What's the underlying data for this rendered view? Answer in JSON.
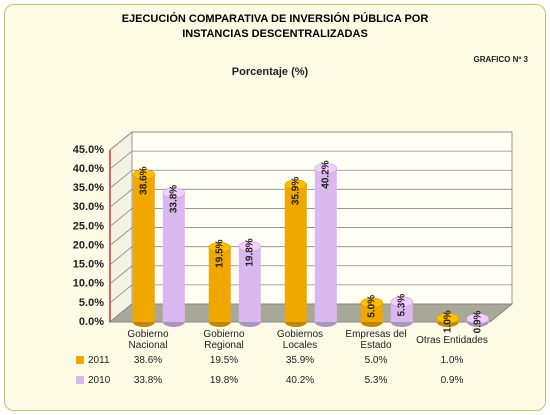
{
  "chart_data": {
    "type": "bar",
    "title": "EJECUCIÓN COMPARATIVA DE INVERSIÓN PÚBLICA POR INSTANCIAS DESCENTRALIZADAS",
    "subtitle": "Porcentaje  (%)",
    "annotation": "GRAFICO Nº 3",
    "categories": [
      "Gobierno Nacional",
      "Gobierno Regional",
      "Gobiernos Locales",
      "Empresas del Estado",
      "Otras Entidades"
    ],
    "series": [
      {
        "name": "2011",
        "color": "#f0a800",
        "values": [
          38.6,
          19.5,
          35.9,
          5.0,
          1.0
        ],
        "value_labels": [
          "38.6%",
          "19.5%",
          "35.9%",
          "5.0%",
          "1.0%"
        ]
      },
      {
        "name": "2010",
        "color": "#d9b8f0",
        "values": [
          33.8,
          19.8,
          40.2,
          5.3,
          0.9
        ],
        "value_labels": [
          "33.8%",
          "19.8%",
          "40.2%",
          "5.3%",
          "0.9%"
        ]
      }
    ],
    "ylim": [
      0,
      45
    ],
    "yticks": [
      {
        "value": 0,
        "label": "0.0%"
      },
      {
        "value": 5,
        "label": "5.0%"
      },
      {
        "value": 10,
        "label": "10.0%"
      },
      {
        "value": 15,
        "label": "15.0%"
      },
      {
        "value": 20,
        "label": "20.0%"
      },
      {
        "value": 25,
        "label": "25.0%"
      },
      {
        "value": 30,
        "label": "30.0%"
      },
      {
        "value": 35,
        "label": "35.0%"
      },
      {
        "value": 40,
        "label": "40.0%"
      },
      {
        "value": 45,
        "label": "45.0%"
      }
    ],
    "grid": true
  }
}
